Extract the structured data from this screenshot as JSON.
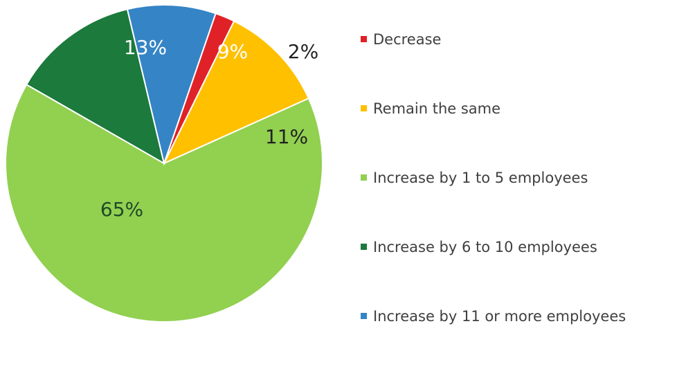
{
  "chart_data": {
    "type": "pie",
    "title": "",
    "start_angle_deg": 19,
    "slices": [
      {
        "label": "Decrease",
        "value": 2,
        "display": "2%",
        "color": "#e02128",
        "label_color": "#222222"
      },
      {
        "label": "Remain the same",
        "value": 11,
        "display": "11%",
        "color": "#ffc000",
        "label_color": "#222222"
      },
      {
        "label": "Increase by 1 to 5 employees",
        "value": 65,
        "display": "65%",
        "color": "#92d050",
        "label_color": "#1e4a28"
      },
      {
        "label": "Increase by 6 to 10 employees",
        "value": 13,
        "display": "13%",
        "color": "#1b7a3c",
        "label_color": "#ffffff"
      },
      {
        "label": "Increase by 11 or more employees",
        "value": 9,
        "display": "9%",
        "color": "#3584c6",
        "label_color": "#ffffff"
      }
    ],
    "legend_order": [
      0,
      1,
      2,
      3,
      4
    ],
    "legend_position": "right"
  }
}
